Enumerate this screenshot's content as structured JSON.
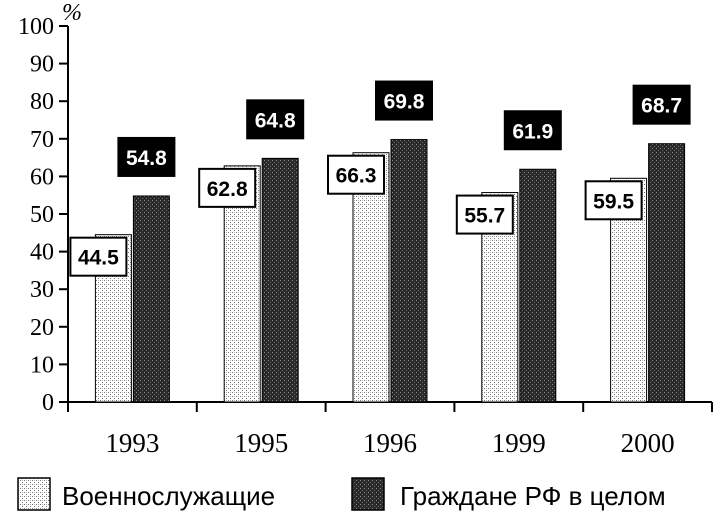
{
  "chart_data": {
    "type": "bar",
    "unit_label": "%",
    "categories": [
      "1993",
      "1995",
      "1996",
      "1999",
      "2000"
    ],
    "series": [
      {
        "name": "Военнослужащие",
        "values": [
          44.5,
          62.8,
          66.3,
          55.7,
          59.5
        ],
        "labels": [
          "44.5",
          "62.8",
          "66.3",
          "55.7",
          "59.5"
        ]
      },
      {
        "name": "Граждане РФ в целом",
        "values": [
          54.8,
          64.8,
          69.8,
          61.9,
          68.7
        ],
        "labels": [
          "54.8",
          "64.8",
          "69.8",
          "61.9",
          "68.7"
        ]
      }
    ],
    "ylim": [
      0,
      100
    ],
    "yticks": [
      "0",
      "10",
      "20",
      "30",
      "40",
      "50",
      "60",
      "70",
      "80",
      "90",
      "100"
    ],
    "grid": false,
    "legend": "bottom"
  }
}
